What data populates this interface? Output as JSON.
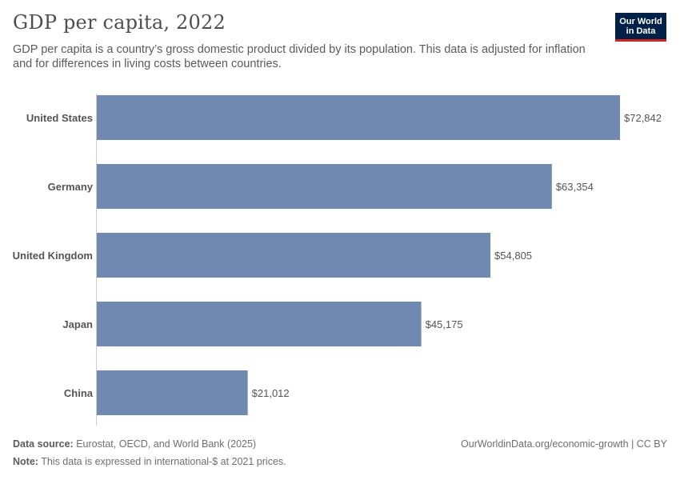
{
  "header": {
    "title": "GDP per capita, 2022",
    "subtitle": "GDP per capita is a country’s gross domestic product divided by its population. This data is adjusted for inflation and for differences in living costs between countries.",
    "logo_line1": "Our World",
    "logo_line2": "in Data"
  },
  "chart_data": {
    "type": "bar",
    "orientation": "horizontal",
    "title": "GDP per capita, 2022",
    "categories": [
      "United States",
      "Germany",
      "United Kingdom",
      "Japan",
      "China"
    ],
    "values": [
      72842,
      63354,
      54805,
      45175,
      21012
    ],
    "value_labels": [
      "$72,842",
      "$63,354",
      "$54,805",
      "$45,175",
      "$21,012"
    ],
    "xlim": [
      0,
      72842
    ],
    "xlabel": "",
    "ylabel": "",
    "grid": false,
    "bar_color": "#6f89b1"
  },
  "footer": {
    "source_label": "Data source:",
    "source_text": "Eurostat, OECD, and World Bank (2025)",
    "note_label": "Note:",
    "note_text": "This data is expressed in international-$ at 2021 prices.",
    "link_text": "OurWorldinData.org/economic-growth | CC BY"
  }
}
